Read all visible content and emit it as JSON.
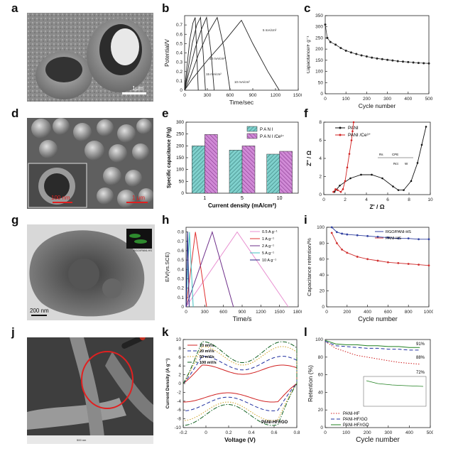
{
  "panels": [
    "a",
    "b",
    "c",
    "d",
    "e",
    "f",
    "g",
    "h",
    "i",
    "j",
    "k",
    "l"
  ],
  "images": {
    "a_scale": "1µm",
    "d_scale_inset": "100 nm",
    "d_scale_main": "1 µm",
    "g_scale": "200 nm",
    "g_inset_label": "RGO/PANI-HS",
    "j_scale": "500 nm"
  },
  "chart_data": [
    {
      "id": "b",
      "type": "line",
      "xlabel": "Time/sec",
      "ylabel": "Potential/V",
      "xlim": [
        0,
        1500
      ],
      "ylim": [
        0,
        0.8
      ],
      "xticks": [
        0,
        300,
        600,
        900,
        1200,
        1500
      ],
      "yticks": [
        0.0,
        0.1,
        0.2,
        0.3,
        0.4,
        0.5,
        0.6,
        0.7
      ],
      "series": [
        {
          "name": "5 mA/cm²",
          "x": [
            0,
            100,
            300,
            550,
            750,
            900,
            1100,
            1250
          ],
          "y": [
            0.0,
            0.12,
            0.32,
            0.55,
            0.75,
            0.5,
            0.2,
            0.0
          ]
        },
        {
          "name": "10 mA/cm²",
          "x": [
            0,
            80,
            190,
            300,
            430,
            520,
            600
          ],
          "y": [
            0.0,
            0.15,
            0.4,
            0.6,
            0.78,
            0.45,
            0.0
          ]
        },
        {
          "name": "15 mA/cm²",
          "x": [
            0,
            60,
            140,
            220,
            290,
            350,
            390
          ],
          "y": [
            0.0,
            0.2,
            0.45,
            0.65,
            0.78,
            0.4,
            0.0
          ]
        },
        {
          "name": "20 mA/cm²",
          "x": [
            0,
            40,
            100,
            160,
            210,
            245,
            275
          ],
          "y": [
            0.0,
            0.2,
            0.5,
            0.7,
            0.78,
            0.4,
            0.0
          ]
        },
        {
          "name": "",
          "x": [
            0,
            30,
            70,
            110,
            140,
            160,
            180
          ],
          "y": [
            0.0,
            0.25,
            0.55,
            0.72,
            0.78,
            0.4,
            0.0
          ]
        }
      ],
      "annotations": [
        "5 mA/cm²",
        "20 mA/cm²",
        "15 mA/cm²",
        "10 mA/cm²"
      ]
    },
    {
      "id": "c",
      "type": "scatter",
      "xlabel": "Cycle number",
      "ylabel": "Capacitance/F g⁻¹",
      "xlim": [
        0,
        500
      ],
      "ylim": [
        0,
        350
      ],
      "xticks": [
        0,
        100,
        200,
        300,
        400,
        500
      ],
      "series": [
        {
          "name": "",
          "x": [
            0,
            10,
            25,
            50,
            75,
            100,
            125,
            150,
            175,
            200,
            225,
            250,
            275,
            300,
            325,
            350,
            375,
            400,
            425,
            450,
            475,
            500
          ],
          "y": [
            310,
            250,
            232,
            220,
            205,
            193,
            185,
            178,
            172,
            167,
            162,
            158,
            155,
            152,
            149,
            146,
            144,
            142,
            140,
            138,
            137,
            136
          ]
        }
      ]
    },
    {
      "id": "e",
      "type": "bar",
      "xlabel": "Current density (mA/cm²)",
      "ylabel": "Specific capacitance (F/g)",
      "categories": [
        "1",
        "5",
        "10"
      ],
      "ylim": [
        0,
        300
      ],
      "yticks": [
        0,
        50,
        100,
        150,
        200,
        250,
        300
      ],
      "series": [
        {
          "name": "P A N I",
          "values": [
            200,
            182,
            165
          ]
        },
        {
          "name": "P A N I /Ce³⁺",
          "values": [
            248,
            200,
            177
          ]
        }
      ],
      "legend": "top-right"
    },
    {
      "id": "f",
      "type": "line",
      "xlabel": "Z' / Ω",
      "ylabel": "Z'' / Ω",
      "xlim": [
        0,
        10
      ],
      "ylim": [
        0,
        8
      ],
      "xticks": [
        0,
        2,
        4,
        6,
        8,
        10
      ],
      "yticks": [
        0,
        2,
        4,
        6,
        8
      ],
      "series": [
        {
          "name": "PANI",
          "x": [
            1.0,
            1.5,
            2.5,
            3.5,
            4.5,
            5.5,
            6.5,
            7.0,
            7.5,
            8.2,
            8.8,
            9.2,
            9.6
          ],
          "y": [
            0.3,
            1.0,
            1.8,
            2.2,
            2.2,
            1.8,
            0.9,
            0.5,
            0.5,
            1.5,
            3.5,
            5.5,
            7.5
          ]
        },
        {
          "name": "PANI /Ce³⁺",
          "x": [
            0.9,
            1.1,
            1.3,
            1.6,
            1.8,
            2.0,
            2.2,
            2.4,
            2.6,
            2.7,
            2.8
          ],
          "y": [
            0.3,
            0.6,
            0.5,
            0.3,
            0.6,
            1.5,
            3.0,
            4.5,
            6.0,
            7.0,
            8.0
          ]
        }
      ],
      "legend": "top-left",
      "inset_circuit_labels": [
        "Rs",
        "CPE",
        "Rct",
        "W"
      ]
    },
    {
      "id": "h",
      "type": "line",
      "xlabel": "Time/s",
      "ylabel": "E/V(vs.SCE)",
      "xlim": [
        0,
        1800
      ],
      "ylim": [
        0,
        0.85
      ],
      "xticks": [
        0,
        300,
        600,
        900,
        1200,
        1500,
        1800
      ],
      "yticks": [
        0.0,
        0.1,
        0.2,
        0.3,
        0.4,
        0.5,
        0.6,
        0.7,
        0.8
      ],
      "series": [
        {
          "name": "0.5 A g⁻¹",
          "color": "#e88fd0",
          "x": [
            0,
            820,
            1640
          ],
          "y": [
            0.0,
            0.8,
            0.0
          ]
        },
        {
          "name": "1 A g⁻¹",
          "color": "#e03030",
          "x": [
            0,
            150,
            330
          ],
          "y": [
            0.0,
            0.8,
            0.0
          ]
        },
        {
          "name": "2 A g⁻¹",
          "color": "#6e2f8a",
          "x": [
            0,
            420,
            760
          ],
          "y": [
            0.0,
            0.8,
            0.0
          ]
        },
        {
          "name": "5 A g⁻¹",
          "color": "#40c0c0",
          "x": [
            0,
            55,
            115
          ],
          "y": [
            0.0,
            0.8,
            0.0
          ]
        },
        {
          "name": "10 A g⁻¹",
          "color": "#202080",
          "x": [
            0,
            25,
            50
          ],
          "y": [
            0.0,
            0.8,
            0.0
          ]
        }
      ],
      "legend": "top-right"
    },
    {
      "id": "i",
      "type": "line",
      "xlabel": "Cycle number",
      "ylabel": "Capacitance retention/%",
      "xlim": [
        0,
        1000
      ],
      "ylim": [
        0,
        100
      ],
      "xticks": [
        0,
        200,
        400,
        600,
        800,
        1000
      ],
      "yticks": [
        0,
        20,
        40,
        60,
        80,
        100
      ],
      "series": [
        {
          "name": "RGO/PANI-HS",
          "color": "#3040a0",
          "x": [
            50,
            100,
            150,
            200,
            300,
            400,
            500,
            600,
            700,
            800,
            900,
            1000
          ],
          "y": [
            100,
            94,
            92,
            91,
            90,
            89,
            88,
            87,
            86,
            86,
            85,
            85
          ]
        },
        {
          "name": "PANI-HS",
          "color": "#d03030",
          "x": [
            50,
            100,
            150,
            200,
            300,
            400,
            500,
            600,
            700,
            800,
            900,
            1000
          ],
          "y": [
            93,
            80,
            72,
            68,
            63,
            60,
            58,
            56,
            55,
            54,
            53,
            52
          ]
        }
      ],
      "legend": "top-right"
    },
    {
      "id": "k",
      "type": "line",
      "xlabel": "Voltage (V)",
      "ylabel": "Current Density (A g⁻¹)",
      "xlim": [
        -0.2,
        0.8
      ],
      "ylim": [
        -10,
        10
      ],
      "xticks": [
        -0.2,
        0.0,
        0.2,
        0.4,
        0.6,
        0.8
      ],
      "yticks": [
        -10,
        -8,
        -6,
        -4,
        -2,
        0,
        2,
        4,
        6,
        8,
        10
      ],
      "series": [
        {
          "name": "10 mV/s",
          "color": "#d02020",
          "dash": "solid"
        },
        {
          "name": "20 mV/s",
          "color": "#2030a0",
          "dash": "dash"
        },
        {
          "name": "50 mV/s",
          "color": "#d0a020",
          "dash": "dot"
        },
        {
          "name": "100 mV/s",
          "color": "#106020",
          "dash": "dashdot"
        }
      ],
      "annotation": "PANI-HF/rGO",
      "legend": "top-left"
    },
    {
      "id": "l",
      "type": "line",
      "xlabel": "Cycle number",
      "ylabel": "Retention (%)",
      "xlim": [
        0,
        500
      ],
      "ylim": [
        0,
        100
      ],
      "xticks": [
        0,
        100,
        200,
        300,
        400,
        500
      ],
      "yticks": [
        0,
        20,
        40,
        60,
        80,
        100
      ],
      "series": [
        {
          "name": "PANI-HF",
          "color": "#d02020",
          "dash": "dot",
          "x": [
            0,
            50,
            100,
            150,
            200,
            250,
            300,
            350,
            400,
            450
          ],
          "y": [
            98,
            90,
            86,
            82,
            80,
            78,
            76,
            74,
            73,
            72
          ]
        },
        {
          "name": "PANI-HF/GO",
          "color": "#2030a0",
          "dash": "dash",
          "x": [
            0,
            50,
            100,
            150,
            200,
            250,
            300,
            350,
            400,
            450
          ],
          "y": [
            98,
            93,
            92,
            91,
            90,
            90,
            89,
            89,
            88,
            88
          ]
        },
        {
          "name": "PANI-HF/rGO",
          "color": "#208020",
          "dash": "solid",
          "x": [
            0,
            50,
            100,
            150,
            200,
            250,
            300,
            350,
            400,
            450
          ],
          "y": [
            99,
            95,
            94,
            94,
            93,
            93,
            92,
            92,
            91,
            91
          ]
        }
      ],
      "annotations": [
        "91%",
        "88%",
        "72%"
      ],
      "legend": "bottom-left"
    }
  ]
}
